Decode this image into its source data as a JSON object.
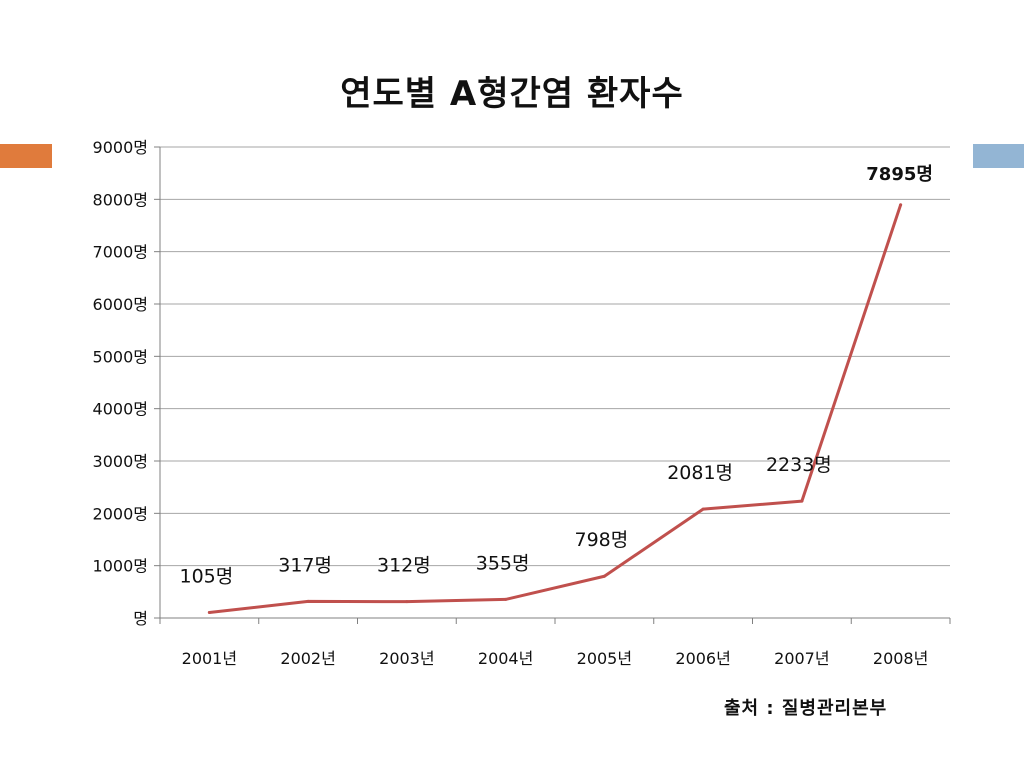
{
  "slide": {
    "accent_left_color": "#E07B3C",
    "accent_right_color": "#93B5D4"
  },
  "chart_data": {
    "type": "line",
    "title": "연도별 A형간염 환자수",
    "categories": [
      "2001년",
      "2002년",
      "2003년",
      "2004년",
      "2005년",
      "2006년",
      "2007년",
      "2008년"
    ],
    "series": [
      {
        "values": [
          105,
          317,
          312,
          355,
          798,
          2081,
          2233,
          7895
        ],
        "data_labels": [
          "105명",
          "317명",
          "312명",
          "355명",
          "798명",
          "2081명",
          "2233명",
          "7895명"
        ],
        "color": "#C0504D"
      }
    ],
    "yticks": [
      "명",
      "1000명",
      "2000명",
      "3000명",
      "4000명",
      "5000명",
      "6000명",
      "7000명",
      "8000명",
      "9000명"
    ],
    "ylim": [
      0,
      9000
    ],
    "grid": true,
    "legend": "none",
    "source_note": "출처 : 질병관리본부"
  }
}
